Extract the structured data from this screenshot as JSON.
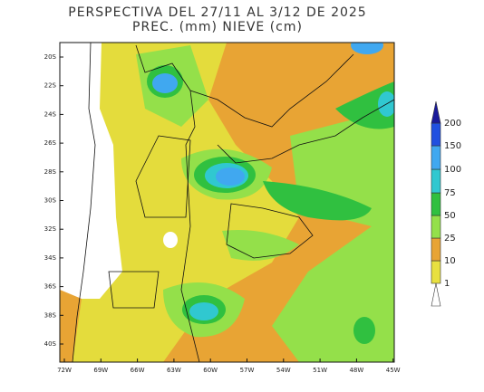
{
  "title": "PERSPECTIVA DEL 27/11 AL 3/12 DE 2025",
  "subtitle": "PREC. (mm) NIEVE (cm)",
  "lat_labels": [
    "20S",
    "22S",
    "24S",
    "26S",
    "28S",
    "30S",
    "32S",
    "34S",
    "36S",
    "38S",
    "40S"
  ],
  "lon_labels": [
    "72W",
    "69W",
    "66W",
    "63W",
    "60W",
    "57W",
    "54W",
    "51W",
    "48W",
    "45W"
  ],
  "legend": {
    "levels": [
      "1",
      "10",
      "25",
      "50",
      "75",
      "100",
      "150",
      "200"
    ]
  }
}
